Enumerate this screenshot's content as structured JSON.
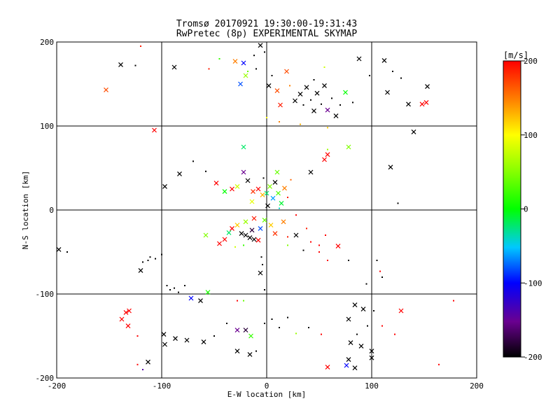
{
  "chart_data": {
    "type": "scatter",
    "title": "Tromsø 20170921 19:30:00-19:31:43",
    "subtitle": "RwPretec (8p) EXPERIMENTAL SKYMAP",
    "xlabel": "E-W location [km]",
    "ylabel": "N-S location [km]",
    "xlim": [
      -200,
      200
    ],
    "ylim": [
      -200,
      200
    ],
    "xticks": [
      "-200",
      "-100",
      "0",
      "100",
      "200"
    ],
    "yticks": [
      "-200",
      "-100",
      "0",
      "100",
      "200"
    ],
    "grid": true,
    "colorbar": {
      "label": "[m/s]",
      "range": [
        -200,
        200
      ],
      "ticks": [
        "200",
        "100",
        "0",
        "-100",
        "-200"
      ]
    },
    "marker_legend": {
      "x": "cross marker",
      "dot": "small point marker"
    },
    "points": [
      {
        "x": -153,
        "y": 143,
        "v": 170,
        "m": "x"
      },
      {
        "x": -139,
        "y": 173,
        "v": -200,
        "m": "x"
      },
      {
        "x": -107,
        "y": 95,
        "v": 200,
        "m": "x"
      },
      {
        "x": -120,
        "y": 195,
        "v": 190,
        "m": "."
      },
      {
        "x": -125,
        "y": 172,
        "v": -200,
        "m": "."
      },
      {
        "x": -88,
        "y": 170,
        "v": -200,
        "m": "x"
      },
      {
        "x": -55,
        "y": 168,
        "v": 190,
        "m": "."
      },
      {
        "x": -45,
        "y": 180,
        "v": 20,
        "m": "."
      },
      {
        "x": -30,
        "y": 177,
        "v": 150,
        "m": "x"
      },
      {
        "x": -22,
        "y": 175,
        "v": -100,
        "m": "x"
      },
      {
        "x": -18,
        "y": 165,
        "v": 40,
        "m": "."
      },
      {
        "x": -12,
        "y": 184,
        "v": -200,
        "m": "."
      },
      {
        "x": -6,
        "y": 196,
        "v": -200,
        "m": "x"
      },
      {
        "x": -2,
        "y": 188,
        "v": -200,
        "m": "."
      },
      {
        "x": -25,
        "y": 150,
        "v": -80,
        "m": "x"
      },
      {
        "x": -20,
        "y": 160,
        "v": 60,
        "m": "x"
      },
      {
        "x": -10,
        "y": 168,
        "v": -200,
        "m": "."
      },
      {
        "x": 5,
        "y": 160,
        "v": -200,
        "m": "."
      },
      {
        "x": 2,
        "y": 148,
        "v": -200,
        "m": "x"
      },
      {
        "x": 10,
        "y": 142,
        "v": 170,
        "m": "x"
      },
      {
        "x": 13,
        "y": 125,
        "v": 190,
        "m": "x"
      },
      {
        "x": 19,
        "y": 165,
        "v": 170,
        "m": "x"
      },
      {
        "x": 22,
        "y": 148,
        "v": 150,
        "m": "."
      },
      {
        "x": 27,
        "y": 130,
        "v": -200,
        "m": "x"
      },
      {
        "x": 32,
        "y": 138,
        "v": -200,
        "m": "x"
      },
      {
        "x": 35,
        "y": 125,
        "v": -200,
        "m": "."
      },
      {
        "x": 38,
        "y": 146,
        "v": -200,
        "m": "x"
      },
      {
        "x": 42,
        "y": 131,
        "v": -200,
        "m": "."
      },
      {
        "x": 45,
        "y": 118,
        "v": -200,
        "m": "x"
      },
      {
        "x": 48,
        "y": 139,
        "v": -200,
        "m": "x"
      },
      {
        "x": 52,
        "y": 126,
        "v": -200,
        "m": "."
      },
      {
        "x": 55,
        "y": 148,
        "v": -200,
        "m": "x"
      },
      {
        "x": 58,
        "y": 119,
        "v": -150,
        "m": "x"
      },
      {
        "x": 62,
        "y": 133,
        "v": -200,
        "m": "."
      },
      {
        "x": 66,
        "y": 112,
        "v": -200,
        "m": "x"
      },
      {
        "x": 70,
        "y": 125,
        "v": -200,
        "m": "."
      },
      {
        "x": 75,
        "y": 140,
        "v": 0,
        "m": "x"
      },
      {
        "x": 82,
        "y": 128,
        "v": -200,
        "m": "."
      },
      {
        "x": 45,
        "y": 155,
        "v": -200,
        "m": "."
      },
      {
        "x": 55,
        "y": 170,
        "v": 80,
        "m": "."
      },
      {
        "x": 88,
        "y": 180,
        "v": -200,
        "m": "x"
      },
      {
        "x": 98,
        "y": 160,
        "v": -200,
        "m": "."
      },
      {
        "x": 112,
        "y": 178,
        "v": -200,
        "m": "x"
      },
      {
        "x": 120,
        "y": 165,
        "v": -200,
        "m": "."
      },
      {
        "x": 128,
        "y": 157,
        "v": -200,
        "m": "."
      },
      {
        "x": 115,
        "y": 140,
        "v": -200,
        "m": "x"
      },
      {
        "x": 135,
        "y": 126,
        "v": -200,
        "m": "x"
      },
      {
        "x": 148,
        "y": 126,
        "v": 200,
        "m": "x"
      },
      {
        "x": 152,
        "y": 128,
        "v": 200,
        "m": "x"
      },
      {
        "x": 153,
        "y": 147,
        "v": -200,
        "m": "x"
      },
      {
        "x": 140,
        "y": 93,
        "v": -200,
        "m": "x"
      },
      {
        "x": 118,
        "y": 51,
        "v": -200,
        "m": "x"
      },
      {
        "x": 125,
        "y": 8,
        "v": -200,
        "m": "."
      },
      {
        "x": 0,
        "y": 110,
        "v": 100,
        "m": "."
      },
      {
        "x": 12,
        "y": 105,
        "v": 150,
        "m": "."
      },
      {
        "x": 32,
        "y": 102,
        "v": 130,
        "m": "."
      },
      {
        "x": 58,
        "y": 98,
        "v": 120,
        "m": "."
      },
      {
        "x": 78,
        "y": 75,
        "v": 50,
        "m": "x"
      },
      {
        "x": 58,
        "y": 66,
        "v": 200,
        "m": "x"
      },
      {
        "x": 55,
        "y": 60,
        "v": 200,
        "m": "x"
      },
      {
        "x": 42,
        "y": 45,
        "v": -200,
        "m": "x"
      },
      {
        "x": 58,
        "y": 72,
        "v": 60,
        "m": "."
      },
      {
        "x": -22,
        "y": 75,
        "v": -20,
        "m": "x"
      },
      {
        "x": -70,
        "y": 58,
        "v": -200,
        "m": "."
      },
      {
        "x": -58,
        "y": 46,
        "v": -200,
        "m": "."
      },
      {
        "x": -83,
        "y": 43,
        "v": -200,
        "m": "x"
      },
      {
        "x": -97,
        "y": 28,
        "v": -200,
        "m": "x"
      },
      {
        "x": -48,
        "y": 32,
        "v": 200,
        "m": "x"
      },
      {
        "x": -40,
        "y": 22,
        "v": 0,
        "m": "x"
      },
      {
        "x": -33,
        "y": 25,
        "v": 200,
        "m": "x"
      },
      {
        "x": -28,
        "y": 28,
        "v": 80,
        "m": "x"
      },
      {
        "x": -22,
        "y": 45,
        "v": -150,
        "m": "x"
      },
      {
        "x": -18,
        "y": 35,
        "v": -200,
        "m": "x"
      },
      {
        "x": -13,
        "y": 22,
        "v": 180,
        "m": "x"
      },
      {
        "x": -8,
        "y": 25,
        "v": 200,
        "m": "x"
      },
      {
        "x": -4,
        "y": 18,
        "v": 130,
        "m": "x"
      },
      {
        "x": 0,
        "y": 20,
        "v": -20,
        "m": "x"
      },
      {
        "x": 3,
        "y": 28,
        "v": 50,
        "m": "x"
      },
      {
        "x": 6,
        "y": 14,
        "v": -60,
        "m": "x"
      },
      {
        "x": 8,
        "y": 33,
        "v": -200,
        "m": "x"
      },
      {
        "x": 11,
        "y": 20,
        "v": 30,
        "m": "x"
      },
      {
        "x": 14,
        "y": 8,
        "v": -10,
        "m": "x"
      },
      {
        "x": 17,
        "y": 26,
        "v": 150,
        "m": "x"
      },
      {
        "x": 20,
        "y": 15,
        "v": 190,
        "m": "."
      },
      {
        "x": 23,
        "y": 36,
        "v": 160,
        "m": "."
      },
      {
        "x": 10,
        "y": 45,
        "v": 40,
        "m": "x"
      },
      {
        "x": -3,
        "y": 38,
        "v": -200,
        "m": "."
      },
      {
        "x": 1,
        "y": 5,
        "v": -200,
        "m": "x"
      },
      {
        "x": -14,
        "y": 10,
        "v": 90,
        "m": "x"
      },
      {
        "x": 12,
        "y": 2,
        "v": -40,
        "m": "."
      },
      {
        "x": -12,
        "y": -10,
        "v": 190,
        "m": "x"
      },
      {
        "x": -20,
        "y": -14,
        "v": 60,
        "m": "x"
      },
      {
        "x": -28,
        "y": -18,
        "v": 120,
        "m": "x"
      },
      {
        "x": -33,
        "y": -22,
        "v": 200,
        "m": "x"
      },
      {
        "x": -36,
        "y": -27,
        "v": -20,
        "m": "x"
      },
      {
        "x": -40,
        "y": -35,
        "v": 200,
        "m": "x"
      },
      {
        "x": -45,
        "y": -40,
        "v": 200,
        "m": "x"
      },
      {
        "x": -58,
        "y": -30,
        "v": 50,
        "m": "x"
      },
      {
        "x": -24,
        "y": -28,
        "v": -200,
        "m": "x"
      },
      {
        "x": -20,
        "y": -30,
        "v": -200,
        "m": "x"
      },
      {
        "x": -16,
        "y": -33,
        "v": -200,
        "m": "x"
      },
      {
        "x": -12,
        "y": -35,
        "v": -200,
        "m": "x"
      },
      {
        "x": -8,
        "y": -36,
        "v": 200,
        "m": "x"
      },
      {
        "x": -14,
        "y": -24,
        "v": -180,
        "m": "x"
      },
      {
        "x": -6,
        "y": -22,
        "v": -80,
        "m": "x"
      },
      {
        "x": -2,
        "y": -12,
        "v": 40,
        "m": "x"
      },
      {
        "x": 4,
        "y": -18,
        "v": 120,
        "m": "x"
      },
      {
        "x": 8,
        "y": -28,
        "v": 180,
        "m": "x"
      },
      {
        "x": 16,
        "y": -14,
        "v": 150,
        "m": "x"
      },
      {
        "x": 20,
        "y": -32,
        "v": 190,
        "m": "."
      },
      {
        "x": 28,
        "y": -6,
        "v": 200,
        "m": "."
      },
      {
        "x": 38,
        "y": -22,
        "v": 190,
        "m": "."
      },
      {
        "x": 42,
        "y": -38,
        "v": 200,
        "m": "."
      },
      {
        "x": 50,
        "y": -42,
        "v": 200,
        "m": "."
      },
      {
        "x": 68,
        "y": -43,
        "v": 200,
        "m": "x"
      },
      {
        "x": 56,
        "y": -30,
        "v": 200,
        "m": "."
      },
      {
        "x": 20,
        "y": -42,
        "v": 50,
        "m": "."
      },
      {
        "x": -22,
        "y": -42,
        "v": 20,
        "m": "."
      },
      {
        "x": -30,
        "y": -44,
        "v": 80,
        "m": "."
      },
      {
        "x": -5,
        "y": -56,
        "v": -200,
        "m": "."
      },
      {
        "x": -4,
        "y": -65,
        "v": -200,
        "m": "."
      },
      {
        "x": -6,
        "y": -75,
        "v": -200,
        "m": "x"
      },
      {
        "x": 28,
        "y": -30,
        "v": -200,
        "m": "x"
      },
      {
        "x": 35,
        "y": -48,
        "v": -200,
        "m": "."
      },
      {
        "x": -2,
        "y": -95,
        "v": -200,
        "m": "."
      },
      {
        "x": 50,
        "y": -50,
        "v": 200,
        "m": "."
      },
      {
        "x": 58,
        "y": -60,
        "v": 200,
        "m": "."
      },
      {
        "x": 78,
        "y": -60,
        "v": -200,
        "m": "."
      },
      {
        "x": 105,
        "y": -60,
        "v": -200,
        "m": "."
      },
      {
        "x": 108,
        "y": -73,
        "v": 200,
        "m": "."
      },
      {
        "x": 110,
        "y": -80,
        "v": -200,
        "m": "."
      },
      {
        "x": 95,
        "y": -88,
        "v": -200,
        "m": "."
      },
      {
        "x": -111,
        "y": -56,
        "v": -200,
        "m": "."
      },
      {
        "x": -113,
        "y": -60,
        "v": -200,
        "m": "."
      },
      {
        "x": -118,
        "y": -62,
        "v": -200,
        "m": "."
      },
      {
        "x": -120,
        "y": -72,
        "v": -200,
        "m": "x"
      },
      {
        "x": -106,
        "y": -58,
        "v": -200,
        "m": "."
      },
      {
        "x": -100,
        "y": -53,
        "v": -200,
        "m": "."
      },
      {
        "x": -95,
        "y": -90,
        "v": -200,
        "m": "."
      },
      {
        "x": -92,
        "y": -95,
        "v": -200,
        "m": "."
      },
      {
        "x": -88,
        "y": -93,
        "v": -200,
        "m": "."
      },
      {
        "x": -84,
        "y": -98,
        "v": -200,
        "m": "."
      },
      {
        "x": -78,
        "y": -90,
        "v": -200,
        "m": "."
      },
      {
        "x": -72,
        "y": -105,
        "v": -100,
        "m": "x"
      },
      {
        "x": -56,
        "y": -98,
        "v": 10,
        "m": "x"
      },
      {
        "x": -198,
        "y": -47,
        "v": -200,
        "m": "x"
      },
      {
        "x": -190,
        "y": -50,
        "v": -200,
        "m": "."
      },
      {
        "x": -138,
        "y": -130,
        "v": 200,
        "m": "x"
      },
      {
        "x": -134,
        "y": -122,
        "v": 200,
        "m": "x"
      },
      {
        "x": -131,
        "y": -120,
        "v": 200,
        "m": "x"
      },
      {
        "x": -132,
        "y": -138,
        "v": 200,
        "m": "x"
      },
      {
        "x": -123,
        "y": -150,
        "v": 200,
        "m": "."
      },
      {
        "x": -123,
        "y": -184,
        "v": 200,
        "m": "."
      },
      {
        "x": -113,
        "y": -181,
        "v": -200,
        "m": "x"
      },
      {
        "x": -118,
        "y": -190,
        "v": -140,
        "m": "."
      },
      {
        "x": -98,
        "y": -148,
        "v": -200,
        "m": "x"
      },
      {
        "x": -97,
        "y": -160,
        "v": -200,
        "m": "x"
      },
      {
        "x": -87,
        "y": -153,
        "v": -200,
        "m": "x"
      },
      {
        "x": -76,
        "y": -155,
        "v": -200,
        "m": "x"
      },
      {
        "x": -60,
        "y": -157,
        "v": -200,
        "m": "x"
      },
      {
        "x": -50,
        "y": -150,
        "v": -200,
        "m": "."
      },
      {
        "x": -38,
        "y": -135,
        "v": -200,
        "m": "."
      },
      {
        "x": -28,
        "y": -143,
        "v": -150,
        "m": "x"
      },
      {
        "x": -20,
        "y": -143,
        "v": -180,
        "m": "x"
      },
      {
        "x": -15,
        "y": -150,
        "v": 20,
        "m": "x"
      },
      {
        "x": -28,
        "y": -168,
        "v": -200,
        "m": "x"
      },
      {
        "x": -16,
        "y": -172,
        "v": -200,
        "m": "x"
      },
      {
        "x": -10,
        "y": -168,
        "v": -200,
        "m": "."
      },
      {
        "x": -2,
        "y": -135,
        "v": -200,
        "m": "."
      },
      {
        "x": 5,
        "y": -130,
        "v": -200,
        "m": "."
      },
      {
        "x": 12,
        "y": -140,
        "v": -200,
        "m": "."
      },
      {
        "x": 20,
        "y": -128,
        "v": -200,
        "m": "."
      },
      {
        "x": 28,
        "y": -147,
        "v": 60,
        "m": "."
      },
      {
        "x": 40,
        "y": -140,
        "v": -200,
        "m": "."
      },
      {
        "x": 52,
        "y": -148,
        "v": 200,
        "m": "."
      },
      {
        "x": 58,
        "y": -187,
        "v": 200,
        "m": "x"
      },
      {
        "x": -28,
        "y": -108,
        "v": 200,
        "m": "."
      },
      {
        "x": -22,
        "y": -108,
        "v": 40,
        "m": "."
      },
      {
        "x": -63,
        "y": -108,
        "v": -200,
        "m": "x"
      },
      {
        "x": 78,
        "y": -130,
        "v": -200,
        "m": "x"
      },
      {
        "x": 84,
        "y": -113,
        "v": -200,
        "m": "x"
      },
      {
        "x": 92,
        "y": -118,
        "v": -200,
        "m": "x"
      },
      {
        "x": 96,
        "y": -138,
        "v": -200,
        "m": "."
      },
      {
        "x": 80,
        "y": -158,
        "v": -200,
        "m": "x"
      },
      {
        "x": 86,
        "y": -148,
        "v": -200,
        "m": "."
      },
      {
        "x": 90,
        "y": -162,
        "v": -200,
        "m": "x"
      },
      {
        "x": 78,
        "y": -178,
        "v": -200,
        "m": "x"
      },
      {
        "x": 84,
        "y": -188,
        "v": -200,
        "m": "x"
      },
      {
        "x": 76,
        "y": -185,
        "v": -100,
        "m": "x"
      },
      {
        "x": 100,
        "y": -168,
        "v": -200,
        "m": "x"
      },
      {
        "x": 110,
        "y": -138,
        "v": 200,
        "m": "."
      },
      {
        "x": 128,
        "y": -120,
        "v": 200,
        "m": "x"
      },
      {
        "x": 122,
        "y": -148,
        "v": 200,
        "m": "."
      },
      {
        "x": 178,
        "y": -108,
        "v": 200,
        "m": "."
      },
      {
        "x": 164,
        "y": -184,
        "v": 200,
        "m": "."
      },
      {
        "x": 100,
        "y": -176,
        "v": -200,
        "m": "x"
      },
      {
        "x": 102,
        "y": -120,
        "v": -200,
        "m": "."
      }
    ]
  }
}
